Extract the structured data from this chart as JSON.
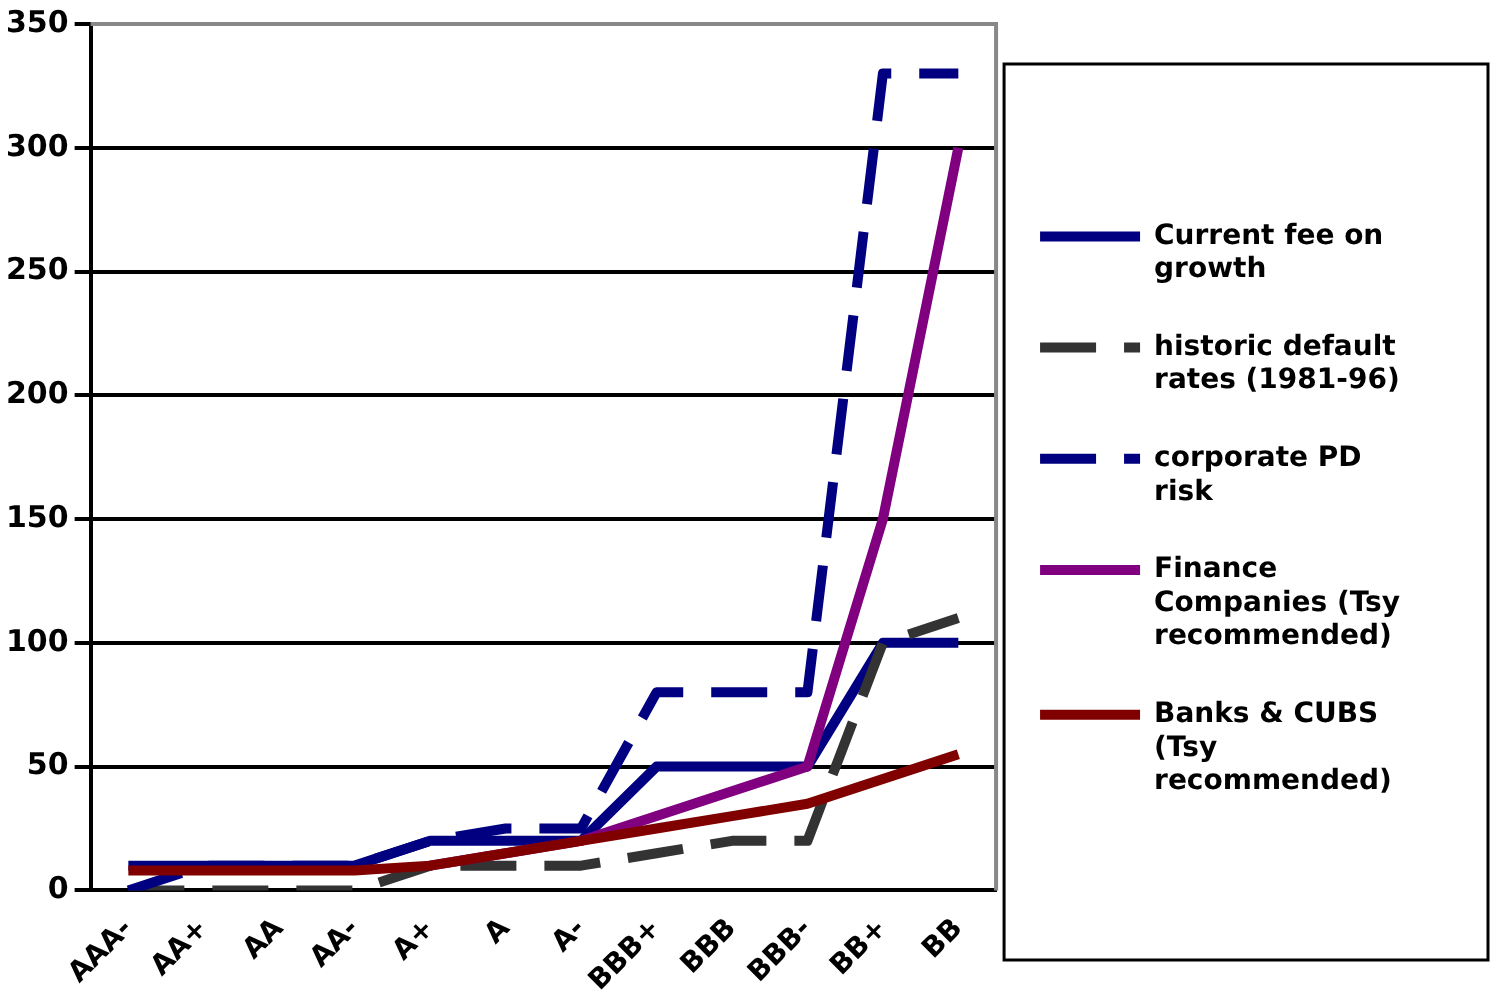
{
  "chart_data": {
    "type": "line",
    "categories": [
      "AAA-",
      "AA+",
      "AA",
      "AA-",
      "A+",
      "A",
      "A-",
      "BBB+",
      "BBB",
      "BBB-",
      "BB+",
      "BB"
    ],
    "series": [
      {
        "name": "Current fee on growth",
        "color": "#000080",
        "line_style": "solid",
        "values": [
          10,
          10,
          10,
          10,
          20,
          20,
          20,
          50,
          50,
          50,
          100,
          100
        ]
      },
      {
        "name": "historic default rates (1981-96)",
        "color": "#333333",
        "line_style": "dashed",
        "values": [
          0,
          0,
          0,
          0,
          10,
          10,
          10,
          15,
          20,
          20,
          100,
          110
        ]
      },
      {
        "name": "corporate PD risk",
        "color": "#000080",
        "line_style": "dashed",
        "values": [
          0,
          10,
          10,
          10,
          20,
          25,
          25,
          80,
          80,
          80,
          330,
          330
        ]
      },
      {
        "name": "Finance Companies (Tsy recommended)",
        "color": "#800080",
        "line_style": "solid",
        "values": [
          null,
          null,
          null,
          null,
          10,
          15,
          20,
          30,
          40,
          50,
          150,
          300
        ]
      },
      {
        "name": "Banks & CUBS (Tsy recommended)",
        "color": "#800000",
        "line_style": "solid",
        "values": [
          8,
          8,
          8,
          8,
          10,
          15,
          20,
          25,
          30,
          35,
          45,
          55
        ]
      }
    ],
    "ylim": [
      0,
      350
    ],
    "yticks": [
      0,
      50,
      100,
      150,
      200,
      250,
      300,
      350
    ],
    "grid": "y",
    "legend": "right",
    "marker": "none"
  }
}
